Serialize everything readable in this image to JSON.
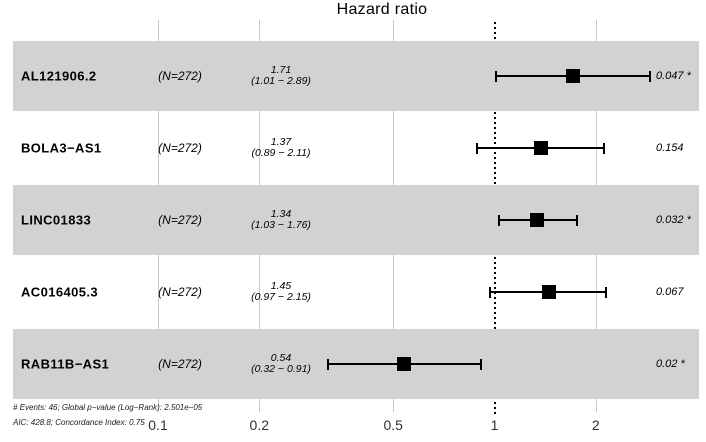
{
  "chart_data": {
    "type": "forest",
    "title": "Hazard ratio",
    "x_scale": "log10",
    "x_ticks": [
      {
        "label": "0.1",
        "value": 0.1
      },
      {
        "label": "0.2",
        "value": 0.2
      },
      {
        "label": "0.5",
        "value": 0.5
      },
      {
        "label": "1",
        "value": 1
      },
      {
        "label": "2",
        "value": 2
      }
    ],
    "reference_value": 1,
    "rows": [
      {
        "label": "AL121906.2",
        "n_label": "(N=272)",
        "hr": 1.71,
        "ci_low": 1.01,
        "ci_high": 2.89,
        "hr_text": "1.71",
        "ci_text": "(1.01 − 2.89)",
        "p_label": "0.047 *",
        "shaded": true
      },
      {
        "label": "BOLA3−AS1",
        "n_label": "(N=272)",
        "hr": 1.37,
        "ci_low": 0.89,
        "ci_high": 2.11,
        "hr_text": "1.37",
        "ci_text": "(0.89 − 2.11)",
        "p_label": "0.154",
        "shaded": false
      },
      {
        "label": "LINC01833",
        "n_label": "(N=272)",
        "hr": 1.34,
        "ci_low": 1.03,
        "ci_high": 1.76,
        "hr_text": "1.34",
        "ci_text": "(1.03 − 1.76)",
        "p_label": "0.032 *",
        "shaded": true
      },
      {
        "label": "AC016405.3",
        "n_label": "(N=272)",
        "hr": 1.45,
        "ci_low": 0.97,
        "ci_high": 2.15,
        "hr_text": "1.45",
        "ci_text": "(0.97 − 2.15)",
        "p_label": "0.067",
        "shaded": false
      },
      {
        "label": "RAB11B−AS1",
        "n_label": "(N=272)",
        "hr": 0.54,
        "ci_low": 0.32,
        "ci_high": 0.91,
        "hr_text": "0.54",
        "ci_text": "(0.32 − 0.91)",
        "p_label": "0.02 *",
        "shaded": true
      }
    ],
    "footnotes": [
      "# Events: 46; Global p−value (Log−Rank): 2.501e−05",
      "AIC: 428.8; Concordance Index: 0.75"
    ],
    "legend_position": "none",
    "grid": true,
    "colors": {
      "band": "#d2d2d2",
      "grid": "#c9c9c9",
      "marker": "#000000"
    }
  }
}
